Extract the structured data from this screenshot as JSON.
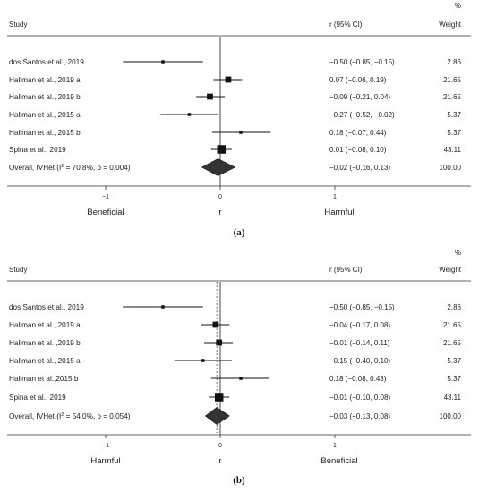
{
  "chart_data": [
    {
      "type": "forest",
      "caption": "(a)",
      "header": {
        "study": "Study",
        "ci": "r (95% CI)",
        "weight_pct": "%",
        "weight": "Weight"
      },
      "studies": [
        {
          "label": "dos Santos et al., 2019",
          "r": -0.5,
          "lo": -0.85,
          "hi": -0.15,
          "ci_text": "−0.50 (−0.85, −0.15)",
          "weight": "2.86",
          "w": 2.86
        },
        {
          "label": "Hallman et al., 2019 a",
          "r": 0.07,
          "lo": -0.06,
          "hi": 0.19,
          "ci_text": "0.07 (−0.06, 0.19)",
          "weight": "21.65",
          "w": 21.65
        },
        {
          "label": "Hallman et al., 2019 b",
          "r": -0.09,
          "lo": -0.21,
          "hi": 0.04,
          "ci_text": "−0.09 (−0.21, 0.04)",
          "weight": "21.65",
          "w": 21.65
        },
        {
          "label": "Hallman et al., 2015 a",
          "r": -0.27,
          "lo": -0.52,
          "hi": -0.02,
          "ci_text": "−0.27 (−0.52, −0.02)",
          "weight": "5.37",
          "w": 5.37
        },
        {
          "label": "Hallman et al., 2015 b",
          "r": 0.18,
          "lo": -0.07,
          "hi": 0.44,
          "ci_text": "0.18 (−0.07, 0.44)",
          "weight": "5.37",
          "w": 5.37
        },
        {
          "label": "Spina et al., 2019",
          "r": 0.01,
          "lo": -0.08,
          "hi": 0.1,
          "ci_text": "0.01 (−0.08, 0.10)",
          "weight": "43.11",
          "w": 43.11
        }
      ],
      "overall": {
        "label_pre": "Overall, IVHet (I",
        "label_sup": "2",
        "label_post": " = 70.8%, p = 0.004)",
        "r": -0.02,
        "lo": -0.16,
        "hi": 0.13,
        "ci_text": "−0.02 (−0.16, 0.13)",
        "weight": "100.00"
      },
      "xlim": [
        -1.6,
        1.6
      ],
      "ticks": [
        -1,
        0,
        1
      ],
      "tick_labels": [
        "−1",
        "0",
        "1"
      ],
      "xlabel": "r",
      "left_label": "Beneficial",
      "right_label": "Harmful"
    },
    {
      "type": "forest",
      "caption": "(b)",
      "header": {
        "study": "Study",
        "ci": "r (95% CI)",
        "weight_pct": "%",
        "weight": "Weight"
      },
      "studies": [
        {
          "label": "dos Santos et al., 2019",
          "r": -0.5,
          "lo": -0.85,
          "hi": -0.15,
          "ci_text": "−0.50 (−0.85, −0.15)",
          "weight": "2.86",
          "w": 2.86
        },
        {
          "label": "Hallman et al., 2019 a",
          "r": -0.04,
          "lo": -0.17,
          "hi": 0.08,
          "ci_text": "−0.04 (−0.17, 0.08)",
          "weight": "21.65",
          "w": 21.65
        },
        {
          "label": "Hallman et al. ,2019 b",
          "r": -0.01,
          "lo": -0.14,
          "hi": 0.11,
          "ci_text": "−0.01 (−0.14, 0.11)",
          "weight": "21.65",
          "w": 21.65
        },
        {
          "label": "Hallman et al., 2015 a",
          "r": -0.15,
          "lo": -0.4,
          "hi": 0.1,
          "ci_text": "−0.15 (−0.40, 0.10)",
          "weight": "5.37",
          "w": 5.37
        },
        {
          "label": "Hallman et al.,2015 b",
          "r": 0.18,
          "lo": -0.08,
          "hi": 0.43,
          "ci_text": "0.18 (−0.08, 0.43)",
          "weight": "5.37",
          "w": 5.37
        },
        {
          "label": "Spina et al., 2019",
          "r": -0.01,
          "lo": -0.1,
          "hi": 0.08,
          "ci_text": "−0.01 (−0.10, 0.08)",
          "weight": "43.11",
          "w": 43.11
        }
      ],
      "overall": {
        "label_pre": "Overall, IVHet (I",
        "label_sup": "2",
        "label_post": " = 54.0%, p = 0.054)",
        "r": -0.03,
        "lo": -0.13,
        "hi": 0.08,
        "ci_text": "−0.03 (−0.13, 0.08)",
        "weight": "100.00"
      },
      "xlim": [
        -1.6,
        1.6
      ],
      "ticks": [
        -1,
        0,
        1
      ],
      "tick_labels": [
        "−1",
        "0",
        "1"
      ],
      "xlabel": "r",
      "left_label": "Harmful",
      "right_label": "Beneficial"
    }
  ]
}
